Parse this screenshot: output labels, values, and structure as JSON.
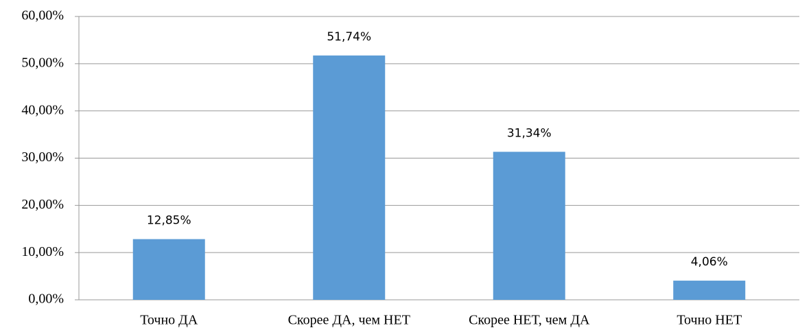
{
  "chart_data": {
    "type": "bar",
    "categories": [
      "Точно ДА",
      "Скорее ДА, чем НЕТ",
      "Скорее НЕТ, чем ДА",
      "Точно НЕТ"
    ],
    "values": [
      12.85,
      51.74,
      31.34,
      4.06
    ],
    "value_labels": [
      "12,85%",
      "51,74%",
      "31,34%",
      "4,06%"
    ],
    "color": "#5b9bd5",
    "ylim": [
      0,
      60
    ],
    "yticks": [
      {
        "value": 0,
        "label": "0,00%"
      },
      {
        "value": 10,
        "label": "10,00%"
      },
      {
        "value": 20,
        "label": "20,00%"
      },
      {
        "value": 30,
        "label": "30,00%"
      },
      {
        "value": 40,
        "label": "40,00%"
      },
      {
        "value": 50,
        "label": "50,00%"
      },
      {
        "value": 60,
        "label": "60,00%"
      }
    ],
    "grid": true
  }
}
